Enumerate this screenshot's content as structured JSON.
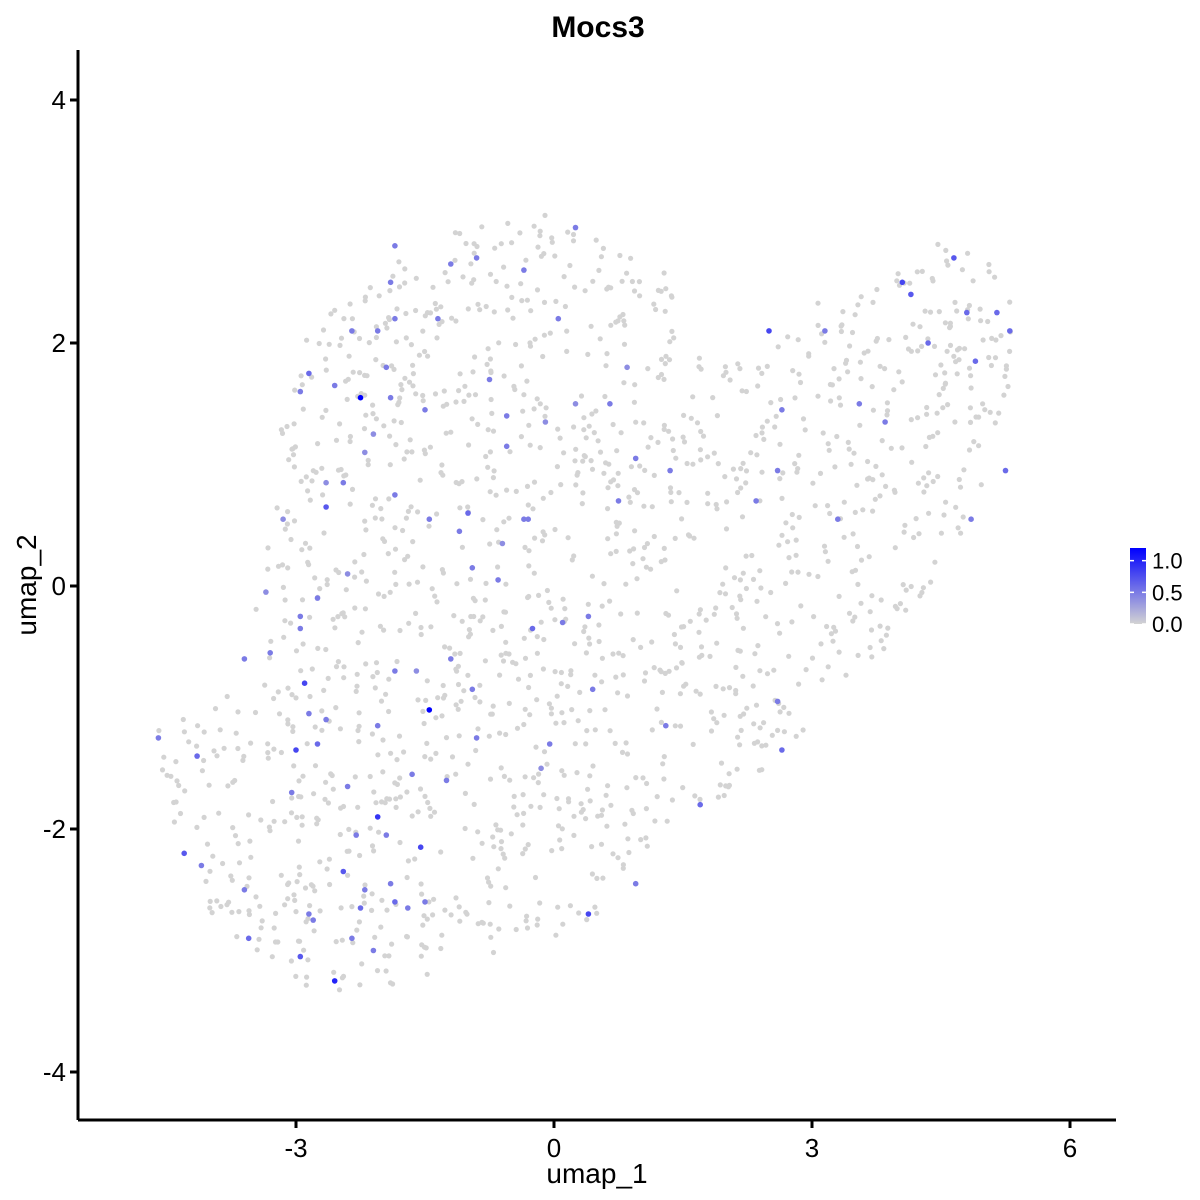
{
  "chart_data": {
    "type": "scatter",
    "title": "Mocs3",
    "xlabel": "umap_1",
    "ylabel": "umap_2",
    "xlim": [
      -5.6,
      6.6
    ],
    "ylim": [
      -4.4,
      4.4
    ],
    "xticks": [
      -3,
      0,
      3,
      6
    ],
    "yticks": [
      -4,
      -2,
      0,
      2,
      4
    ],
    "grid": false,
    "legend": {
      "placement": "right",
      "title": "",
      "ticks": [
        0.0,
        0.5,
        1.0
      ],
      "tick_labels": [
        "0.0",
        "0.5",
        "1.0"
      ],
      "range": [
        0,
        1.2
      ],
      "low_color": "#d3d3d3",
      "high_color": "#0000ff"
    },
    "background_points": {
      "description_count": 1600,
      "color": "#d3d3d3",
      "value": 0,
      "regions": [
        {
          "polygon": [
            [
              -4.7,
              -1.2
            ],
            [
              -3.8,
              -0.9
            ],
            [
              -3.4,
              0.3
            ],
            [
              -3.2,
              1.3
            ],
            [
              -2.8,
              2.2
            ],
            [
              -2.0,
              2.6
            ],
            [
              -1.2,
              2.9
            ],
            [
              0.0,
              3.1
            ],
            [
              1.0,
              2.7
            ],
            [
              1.5,
              2.5
            ],
            [
              1.4,
              2.0
            ],
            [
              1.8,
              1.9
            ],
            [
              2.5,
              1.9
            ],
            [
              3.3,
              2.5
            ],
            [
              4.2,
              2.6
            ],
            [
              4.5,
              3.0
            ],
            [
              5.3,
              2.5
            ],
            [
              5.4,
              1.9
            ],
            [
              5.0,
              0.9
            ],
            [
              4.8,
              0.4
            ],
            [
              4.2,
              -0.3
            ],
            [
              3.4,
              -0.8
            ],
            [
              3.0,
              -1.1
            ],
            [
              2.6,
              -1.5
            ],
            [
              1.5,
              -1.9
            ],
            [
              0.7,
              -2.4
            ],
            [
              0.5,
              -2.7
            ],
            [
              0.0,
              -2.9
            ],
            [
              -0.4,
              -3.0
            ],
            [
              -1.4,
              -3.2
            ],
            [
              -2.5,
              -3.4
            ],
            [
              -3.2,
              -3.2
            ],
            [
              -3.8,
              -2.9
            ],
            [
              -4.3,
              -2.3
            ],
            [
              -4.5,
              -1.7
            ]
          ]
        }
      ]
    },
    "points": [
      {
        "x": -2.25,
        "y": 1.55,
        "v": 1.2
      },
      {
        "x": -1.45,
        "y": -1.02,
        "v": 1.2
      },
      {
        "x": -2.55,
        "y": -3.25,
        "v": 1.0
      },
      {
        "x": -2.05,
        "y": -1.9,
        "v": 0.9
      },
      {
        "x": -2.9,
        "y": -0.8,
        "v": 0.8
      },
      {
        "x": -3.0,
        "y": -1.35,
        "v": 0.8
      },
      {
        "x": -1.55,
        "y": -2.15,
        "v": 0.8
      },
      {
        "x": 0.4,
        "y": -2.7,
        "v": 0.8
      },
      {
        "x": -2.95,
        "y": -3.05,
        "v": 0.7
      },
      {
        "x": 2.5,
        "y": 2.1,
        "v": 0.8
      },
      {
        "x": 4.05,
        "y": 2.5,
        "v": 0.8
      },
      {
        "x": 4.15,
        "y": 2.4,
        "v": 0.7
      },
      {
        "x": 4.65,
        "y": 2.7,
        "v": 0.7
      },
      {
        "x": 4.8,
        "y": 2.25,
        "v": 0.6
      },
      {
        "x": 5.15,
        "y": 2.25,
        "v": 0.6
      },
      {
        "x": 5.3,
        "y": 2.1,
        "v": 0.6
      },
      {
        "x": 4.35,
        "y": 2.0,
        "v": 0.6
      },
      {
        "x": 4.9,
        "y": 1.85,
        "v": 0.6
      },
      {
        "x": 5.25,
        "y": 0.95,
        "v": 0.6
      },
      {
        "x": 4.85,
        "y": 0.55,
        "v": 0.5
      },
      {
        "x": -2.85,
        "y": 1.75,
        "v": 0.6
      },
      {
        "x": -2.55,
        "y": 1.65,
        "v": 0.5
      },
      {
        "x": -1.85,
        "y": 2.2,
        "v": 0.5
      },
      {
        "x": -1.9,
        "y": 1.55,
        "v": 0.5
      },
      {
        "x": -2.45,
        "y": 0.85,
        "v": 0.5
      },
      {
        "x": -2.65,
        "y": 0.65,
        "v": 0.7
      },
      {
        "x": -1.85,
        "y": 0.75,
        "v": 0.5
      },
      {
        "x": -1.0,
        "y": 0.6,
        "v": 0.6
      },
      {
        "x": -0.55,
        "y": 1.4,
        "v": 0.5
      },
      {
        "x": 0.05,
        "y": 2.2,
        "v": 0.5
      },
      {
        "x": 0.25,
        "y": 2.95,
        "v": 0.5
      },
      {
        "x": -1.2,
        "y": 2.65,
        "v": 0.5
      },
      {
        "x": -0.9,
        "y": 2.7,
        "v": 0.5
      },
      {
        "x": -0.35,
        "y": 2.6,
        "v": 0.5
      },
      {
        "x": -1.85,
        "y": 2.8,
        "v": 0.5
      },
      {
        "x": -1.9,
        "y": 2.5,
        "v": 0.5
      },
      {
        "x": -0.1,
        "y": 1.35,
        "v": 0.4
      },
      {
        "x": 0.25,
        "y": 1.5,
        "v": 0.4
      },
      {
        "x": 0.65,
        "y": 1.5,
        "v": 0.5
      },
      {
        "x": 0.85,
        "y": 1.8,
        "v": 0.4
      },
      {
        "x": 0.95,
        "y": 1.05,
        "v": 0.5
      },
      {
        "x": 0.75,
        "y": 0.7,
        "v": 0.5
      },
      {
        "x": -0.3,
        "y": 0.55,
        "v": 0.5
      },
      {
        "x": -1.45,
        "y": 0.55,
        "v": 0.5
      },
      {
        "x": -1.1,
        "y": 0.45,
        "v": 0.5
      },
      {
        "x": -0.6,
        "y": 0.35,
        "v": 0.4
      },
      {
        "x": -0.95,
        "y": 0.15,
        "v": 0.5
      },
      {
        "x": -0.65,
        "y": 0.05,
        "v": 0.5
      },
      {
        "x": -0.25,
        "y": -0.35,
        "v": 0.6
      },
      {
        "x": 0.1,
        "y": -0.3,
        "v": 0.5
      },
      {
        "x": -1.2,
        "y": -0.6,
        "v": 0.5
      },
      {
        "x": -0.95,
        "y": -0.85,
        "v": 0.5
      },
      {
        "x": -1.85,
        "y": -0.7,
        "v": 0.5
      },
      {
        "x": -3.6,
        "y": -0.6,
        "v": 0.5
      },
      {
        "x": -3.3,
        "y": -0.55,
        "v": 0.5
      },
      {
        "x": -2.95,
        "y": -0.25,
        "v": 0.5
      },
      {
        "x": -2.95,
        "y": -0.35,
        "v": 0.5
      },
      {
        "x": -2.4,
        "y": 0.1,
        "v": 0.4
      },
      {
        "x": -2.75,
        "y": -0.1,
        "v": 0.5
      },
      {
        "x": -2.85,
        "y": -1.05,
        "v": 0.5
      },
      {
        "x": -2.65,
        "y": -1.1,
        "v": 0.5
      },
      {
        "x": -2.75,
        "y": -1.3,
        "v": 0.6
      },
      {
        "x": -3.05,
        "y": -1.7,
        "v": 0.5
      },
      {
        "x": -4.6,
        "y": -1.25,
        "v": 0.5
      },
      {
        "x": -4.15,
        "y": -1.4,
        "v": 0.6
      },
      {
        "x": -4.1,
        "y": -2.3,
        "v": 0.5
      },
      {
        "x": -4.3,
        "y": -2.2,
        "v": 0.7
      },
      {
        "x": -3.6,
        "y": -2.5,
        "v": 0.5
      },
      {
        "x": -3.55,
        "y": -2.9,
        "v": 0.6
      },
      {
        "x": -2.85,
        "y": -2.7,
        "v": 0.5
      },
      {
        "x": -2.8,
        "y": -2.75,
        "v": 0.5
      },
      {
        "x": -2.45,
        "y": -2.35,
        "v": 0.7
      },
      {
        "x": -2.3,
        "y": -2.05,
        "v": 0.5
      },
      {
        "x": -2.25,
        "y": -2.65,
        "v": 0.6
      },
      {
        "x": -2.2,
        "y": -2.5,
        "v": 0.5
      },
      {
        "x": -2.35,
        "y": -2.9,
        "v": 0.5
      },
      {
        "x": -2.1,
        "y": -3.0,
        "v": 0.5
      },
      {
        "x": -1.9,
        "y": -2.45,
        "v": 0.5
      },
      {
        "x": -1.85,
        "y": -2.6,
        "v": 0.6
      },
      {
        "x": -1.7,
        "y": -2.65,
        "v": 0.5
      },
      {
        "x": -1.5,
        "y": -2.6,
        "v": 0.5
      },
      {
        "x": -1.95,
        "y": -2.05,
        "v": 0.5
      },
      {
        "x": -1.65,
        "y": -1.55,
        "v": 0.5
      },
      {
        "x": -1.25,
        "y": -1.6,
        "v": 0.5
      },
      {
        "x": -0.9,
        "y": -1.25,
        "v": 0.5
      },
      {
        "x": -0.05,
        "y": -1.3,
        "v": 0.5
      },
      {
        "x": 0.45,
        "y": -0.85,
        "v": 0.5
      },
      {
        "x": 1.3,
        "y": -1.15,
        "v": 0.5
      },
      {
        "x": 1.7,
        "y": -1.8,
        "v": 0.6
      },
      {
        "x": 0.95,
        "y": -2.45,
        "v": 0.5
      },
      {
        "x": 2.65,
        "y": -1.35,
        "v": 0.6
      },
      {
        "x": 2.6,
        "y": -0.95,
        "v": 0.5
      },
      {
        "x": 3.3,
        "y": 0.55,
        "v": 0.5
      },
      {
        "x": 2.35,
        "y": 0.7,
        "v": 0.5
      },
      {
        "x": 2.6,
        "y": 0.95,
        "v": 0.5
      },
      {
        "x": 2.65,
        "y": 1.45,
        "v": 0.5
      },
      {
        "x": 3.55,
        "y": 1.5,
        "v": 0.5
      },
      {
        "x": 3.15,
        "y": 2.1,
        "v": 0.5
      },
      {
        "x": 3.85,
        "y": 1.35,
        "v": 0.5
      },
      {
        "x": -2.65,
        "y": 0.85,
        "v": 0.4
      },
      {
        "x": -2.35,
        "y": 2.1,
        "v": 0.5
      },
      {
        "x": -2.05,
        "y": 2.1,
        "v": 0.5
      },
      {
        "x": -1.95,
        "y": 1.8,
        "v": 0.5
      },
      {
        "x": -1.35,
        "y": 2.2,
        "v": 0.5
      },
      {
        "x": -1.5,
        "y": 1.45,
        "v": 0.5
      },
      {
        "x": -0.75,
        "y": 1.7,
        "v": 0.5
      },
      {
        "x": -0.55,
        "y": 1.15,
        "v": 0.5
      },
      {
        "x": -2.1,
        "y": 1.25,
        "v": 0.4
      },
      {
        "x": -2.2,
        "y": 1.1,
        "v": 0.4
      },
      {
        "x": -2.95,
        "y": 1.6,
        "v": 0.5
      },
      {
        "x": -3.15,
        "y": 0.55,
        "v": 0.4
      },
      {
        "x": -3.35,
        "y": -0.05,
        "v": 0.4
      },
      {
        "x": -2.05,
        "y": -1.15,
        "v": 0.5
      },
      {
        "x": -1.6,
        "y": -0.7,
        "v": 0.4
      },
      {
        "x": -0.35,
        "y": 0.55,
        "v": 0.5
      },
      {
        "x": 1.35,
        "y": 0.95,
        "v": 0.5
      },
      {
        "x": 0.4,
        "y": -0.25,
        "v": 0.5
      },
      {
        "x": -0.15,
        "y": -1.5,
        "v": 0.4
      },
      {
        "x": -2.4,
        "y": -1.65,
        "v": 0.5
      }
    ]
  }
}
